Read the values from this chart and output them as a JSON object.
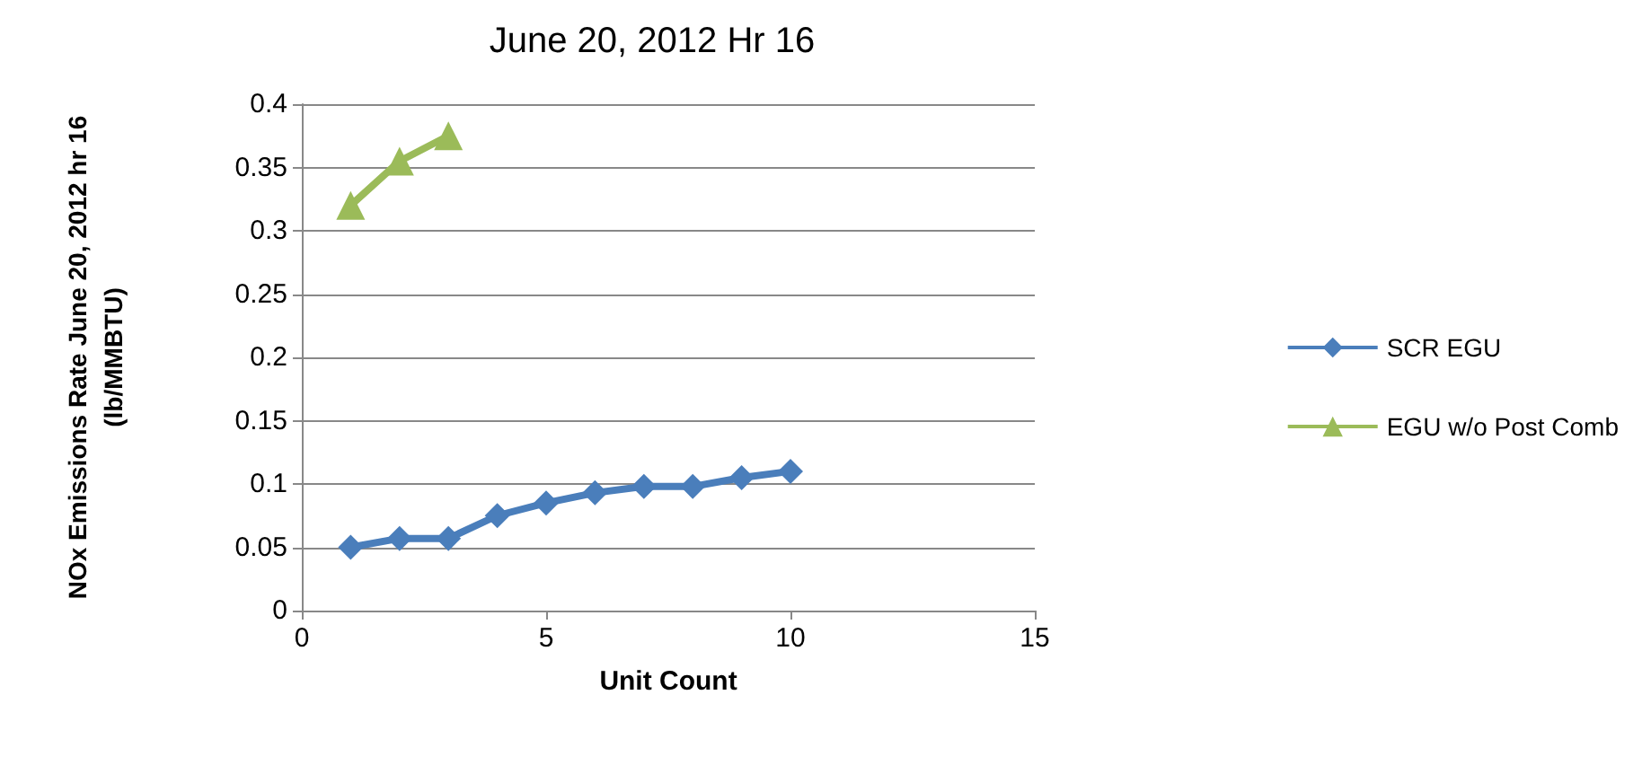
{
  "chart_data": {
    "type": "line",
    "title": "June 20, 2012 Hr 16",
    "xlabel": "Unit Count",
    "ylabel": "NOx Emissions Rate June 20, 2012 hr 16\n(lb/MMBTU)",
    "xlim": [
      0,
      15
    ],
    "xticks": [
      0,
      5,
      10,
      15
    ],
    "ylim": [
      0,
      0.4
    ],
    "yticks": [
      0,
      0.05,
      0.1,
      0.15,
      0.2,
      0.25,
      0.3,
      0.35,
      0.4
    ],
    "grid": "y",
    "legend": "right",
    "series": [
      {
        "name": "SCR EGU",
        "color": "#4a7ebb",
        "marker": "diamond",
        "x": [
          1,
          2,
          3,
          4,
          5,
          6,
          7,
          8,
          9,
          10
        ],
        "values": [
          0.05,
          0.057,
          0.057,
          0.075,
          0.085,
          0.093,
          0.098,
          0.098,
          0.105,
          0.11
        ]
      },
      {
        "name": "EGU w/o Post Comb",
        "color": "#9bbb59",
        "marker": "triangle",
        "x": [
          1,
          2,
          3
        ],
        "values": [
          0.32,
          0.355,
          0.375
        ]
      }
    ]
  }
}
